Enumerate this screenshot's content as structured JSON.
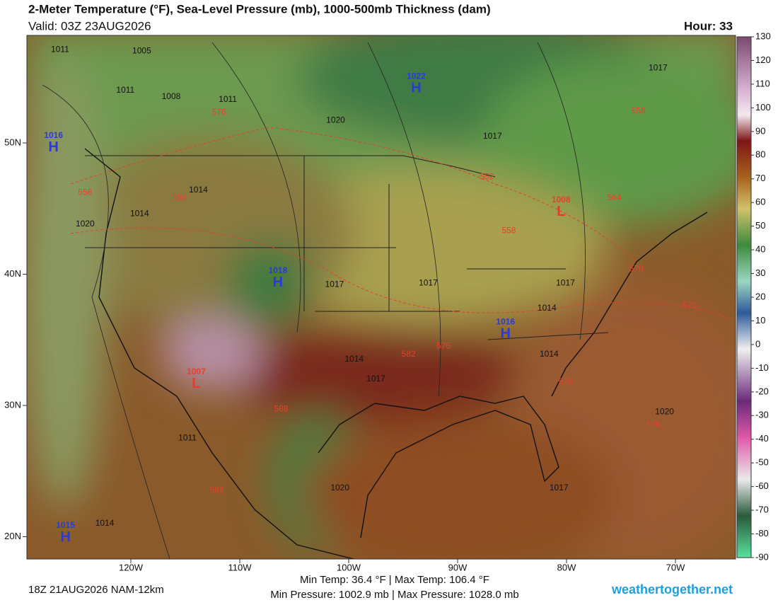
{
  "header": {
    "title": "2-Meter Temperature (°F), Sea-Level Pressure (mb), 1000-500mb Thickness (dam)",
    "valid": "Valid: 03Z 23AUG2026",
    "hour": "Hour: 33"
  },
  "map": {
    "xticks": [
      {
        "value": -120,
        "label": "120W"
      },
      {
        "value": -110,
        "label": "110W"
      },
      {
        "value": -100,
        "label": "100W"
      },
      {
        "value": -90,
        "label": "90W"
      },
      {
        "value": -80,
        "label": "80W"
      },
      {
        "value": -70,
        "label": "70W"
      }
    ],
    "yticks": [
      {
        "value": 20,
        "label": "20N"
      },
      {
        "value": 30,
        "label": "30N"
      },
      {
        "value": 40,
        "label": "40N"
      },
      {
        "value": 50,
        "label": "50N"
      }
    ],
    "pressure_centers": [
      {
        "type": "H",
        "value": 1022,
        "lon": -93.8,
        "lat": 54.3
      },
      {
        "type": "H",
        "value": 1016,
        "lon": -127.1,
        "lat": 49.8
      },
      {
        "type": "L",
        "value": 1008,
        "lon": -80.5,
        "lat": 44.9
      },
      {
        "type": "H",
        "value": 1016,
        "lon": -85.6,
        "lat": 35.6
      },
      {
        "type": "H",
        "value": 1018,
        "lon": -106.5,
        "lat": 39.5
      },
      {
        "type": "L",
        "value": 1007,
        "lon": -114,
        "lat": 31.8
      },
      {
        "type": "H",
        "value": 1015,
        "lon": -126,
        "lat": 20.1
      }
    ],
    "isobar_labels": [
      {
        "value": 1011,
        "lon": -126.5,
        "lat": 57.1
      },
      {
        "value": 1005,
        "lon": -119.0,
        "lat": 57.0
      },
      {
        "value": 1011,
        "lon": -120.5,
        "lat": 54.0
      },
      {
        "value": 1008,
        "lon": -116.3,
        "lat": 53.5
      },
      {
        "value": 1011,
        "lon": -111.1,
        "lat": 53.3
      },
      {
        "value": 1020,
        "lon": -101.2,
        "lat": 51.7
      },
      {
        "value": 1017,
        "lon": -86.8,
        "lat": 50.5
      },
      {
        "value": 1017,
        "lon": -71.6,
        "lat": 55.7
      },
      {
        "value": 1014,
        "lon": -113.8,
        "lat": 46.4
      },
      {
        "value": 1014,
        "lon": -119.2,
        "lat": 44.6
      },
      {
        "value": 1020,
        "lon": -124.2,
        "lat": 43.8
      },
      {
        "value": 1017,
        "lon": -101.3,
        "lat": 39.2
      },
      {
        "value": 1017,
        "lon": -92.7,
        "lat": 39.3
      },
      {
        "value": 1017,
        "lon": -80.1,
        "lat": 39.3
      },
      {
        "value": 1014,
        "lon": -81.8,
        "lat": 37.4
      },
      {
        "value": 1014,
        "lon": -99.5,
        "lat": 33.5
      },
      {
        "value": 1017,
        "lon": -97.5,
        "lat": 32.0
      },
      {
        "value": 1014,
        "lon": -81.6,
        "lat": 33.9
      },
      {
        "value": 1020,
        "lon": -71.0,
        "lat": 29.5
      },
      {
        "value": 1011,
        "lon": -114.8,
        "lat": 27.5
      },
      {
        "value": 1014,
        "lon": -122.4,
        "lat": 21.0
      },
      {
        "value": 1017,
        "lon": -80.7,
        "lat": 23.7
      },
      {
        "value": 1020,
        "lon": -100.8,
        "lat": 23.7
      }
    ],
    "thickness_labels": [
      {
        "value": 576,
        "lon": -111.9,
        "lat": 52.3
      },
      {
        "value": 558,
        "lon": -73.4,
        "lat": 52.4
      },
      {
        "value": 552,
        "lon": -87.3,
        "lat": 47.4
      },
      {
        "value": 582,
        "lon": -115.5,
        "lat": 45.8
      },
      {
        "value": 558,
        "lon": -85.3,
        "lat": 43.3
      },
      {
        "value": 564,
        "lon": -75.6,
        "lat": 45.8
      },
      {
        "value": 570,
        "lon": -73.6,
        "lat": 40.4
      },
      {
        "value": 576,
        "lon": -68.7,
        "lat": 37.6
      },
      {
        "value": 582,
        "lon": -94.5,
        "lat": 33.9
      },
      {
        "value": 576,
        "lon": -91.3,
        "lat": 34.5
      },
      {
        "value": 588,
        "lon": -106.2,
        "lat": 29.7
      },
      {
        "value": 582,
        "lon": -112.1,
        "lat": 23.5
      },
      {
        "value": 576,
        "lon": -80.1,
        "lat": 31.8
      },
      {
        "value": 576,
        "lon": -72.0,
        "lat": 28.5
      },
      {
        "value": 558,
        "lon": -124.2,
        "lat": 46.2
      }
    ]
  },
  "colorbar": {
    "lim": [
      -90,
      130
    ],
    "ticks": [
      130,
      120,
      110,
      100,
      90,
      80,
      70,
      60,
      50,
      40,
      30,
      20,
      10,
      0,
      -10,
      -20,
      -30,
      -40,
      -50,
      -60,
      -70,
      -80,
      -90
    ]
  },
  "footer": {
    "run": "18Z 21AUG2026 NAM-12km",
    "temp": "Min Temp: 36.4 °F | Max Temp: 106.4 °F",
    "pressure": "Min Pressure: 1002.9 mb | Max Pressure: 1028.0 mb",
    "site": "weathertogether.net"
  }
}
